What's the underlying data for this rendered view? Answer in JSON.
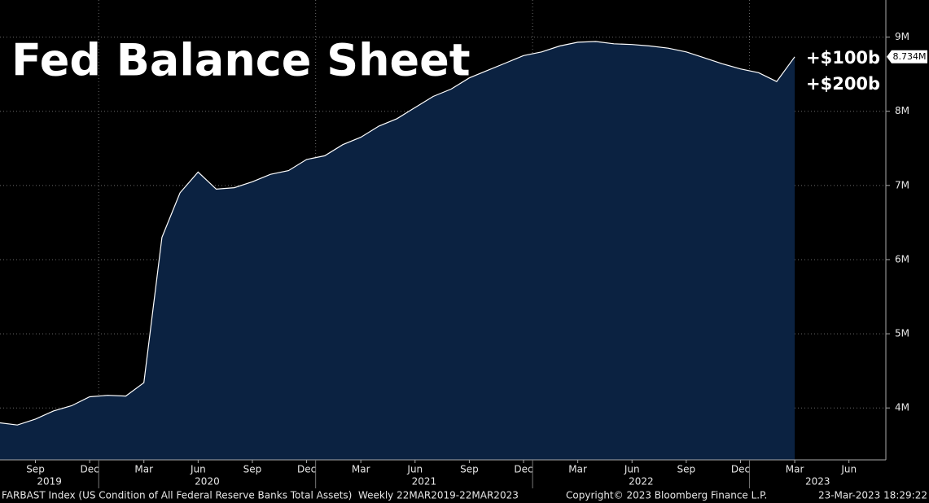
{
  "chart_data": {
    "type": "area",
    "title": "Fed Balance Sheet",
    "annotations": [
      "+$100b",
      "+$200b"
    ],
    "x": [
      "2019-07",
      "2019-08",
      "2019-09",
      "2019-10",
      "2019-11",
      "2019-12",
      "2020-01",
      "2020-02",
      "2020-03",
      "2020-04",
      "2020-05",
      "2020-06",
      "2020-07",
      "2020-08",
      "2020-09",
      "2020-10",
      "2020-11",
      "2020-12",
      "2021-01",
      "2021-02",
      "2021-03",
      "2021-04",
      "2021-05",
      "2021-06",
      "2021-07",
      "2021-08",
      "2021-09",
      "2021-10",
      "2021-11",
      "2021-12",
      "2022-01",
      "2022-02",
      "2022-03",
      "2022-04",
      "2022-05",
      "2022-06",
      "2022-07",
      "2022-08",
      "2022-09",
      "2022-10",
      "2022-11",
      "2022-12",
      "2023-01",
      "2023-02",
      "2023-03"
    ],
    "values": [
      3.8,
      3.77,
      3.85,
      3.96,
      4.03,
      4.15,
      4.17,
      4.16,
      4.34,
      6.3,
      6.9,
      7.18,
      6.95,
      6.97,
      7.05,
      7.15,
      7.2,
      7.35,
      7.4,
      7.55,
      7.65,
      7.8,
      7.9,
      8.05,
      8.2,
      8.3,
      8.45,
      8.55,
      8.65,
      8.75,
      8.8,
      8.88,
      8.93,
      8.94,
      8.91,
      8.9,
      8.88,
      8.85,
      8.8,
      8.72,
      8.64,
      8.57,
      8.52,
      8.4,
      8.734
    ],
    "last_value_label": "8.734M",
    "color": "#0b2241",
    "line_color": "#ffffff",
    "xlim": [
      "2019-07",
      "2023-08"
    ],
    "xticks": [
      {
        "value": "2019-09",
        "label": "Sep"
      },
      {
        "value": "2019-12",
        "label": "Dec"
      },
      {
        "value": "2020-03",
        "label": "Mar"
      },
      {
        "value": "2020-06",
        "label": "Jun"
      },
      {
        "value": "2020-09",
        "label": "Sep"
      },
      {
        "value": "2020-12",
        "label": "Dec"
      },
      {
        "value": "2021-03",
        "label": "Mar"
      },
      {
        "value": "2021-06",
        "label": "Jun"
      },
      {
        "value": "2021-09",
        "label": "Sep"
      },
      {
        "value": "2021-12",
        "label": "Dec"
      },
      {
        "value": "2022-03",
        "label": "Mar"
      },
      {
        "value": "2022-06",
        "label": "Jun"
      },
      {
        "value": "2022-09",
        "label": "Sep"
      },
      {
        "value": "2022-12",
        "label": "Dec"
      },
      {
        "value": "2023-03",
        "label": "Mar"
      },
      {
        "value": "2023-06",
        "label": "Jun"
      }
    ],
    "years": [
      "2019",
      "2020",
      "2021",
      "2022",
      "2023"
    ],
    "ylim": [
      3.3,
      9.5
    ],
    "yticks": [
      {
        "value": 4,
        "label": "4M"
      },
      {
        "value": 5,
        "label": "5M"
      },
      {
        "value": 6,
        "label": "6M"
      },
      {
        "value": 7,
        "label": "7M"
      },
      {
        "value": 8,
        "label": "8M"
      },
      {
        "value": 9,
        "label": "9M"
      }
    ],
    "grid": true,
    "footer": {
      "source": "FARBAST Index (US Condition of All Federal Reserve Banks Total Assets)  Weekly 22MAR2019-22MAR2023",
      "copyright": "Copyright© 2023 Bloomberg Finance L.P.",
      "timestamp": "23-Mar-2023 18:29:22"
    }
  }
}
